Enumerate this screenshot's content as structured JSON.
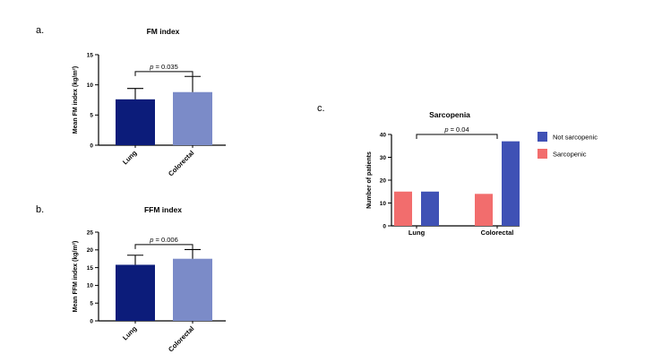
{
  "chart_data": [
    {
      "panel": "a.",
      "type": "bar",
      "title": "FM index",
      "ylabel": "Mean FM index (kg/m²)",
      "categories": [
        "Lung",
        "Colorectal"
      ],
      "values": [
        7.6,
        8.8
      ],
      "errors": [
        1.8,
        2.6
      ],
      "ylim": [
        0,
        15
      ],
      "yticks": [
        "0",
        "5",
        "10",
        "15"
      ],
      "colors": [
        "#0c1c7a",
        "#7b8bc8"
      ],
      "annotation": {
        "prefix": "p",
        "text": " = 0.035",
        "level": 12.2
      }
    },
    {
      "panel": "b.",
      "type": "bar",
      "title": "FFM index",
      "ylabel": "Mean FFM index (kg/m²)",
      "categories": [
        "Lung",
        "Colorectal"
      ],
      "values": [
        15.8,
        17.5
      ],
      "errors": [
        2.7,
        2.6
      ],
      "ylim": [
        0,
        25
      ],
      "yticks": [
        "0",
        "5",
        "10",
        "15",
        "20",
        "25"
      ],
      "colors": [
        "#0c1c7a",
        "#7b8bc8"
      ],
      "annotation": {
        "prefix": "p",
        "text": " = 0.006",
        "level": 21.5
      }
    },
    {
      "panel": "c.",
      "type": "bar",
      "title": "Sarcopenia",
      "ylabel": "Number of patients",
      "categories": [
        "Lung",
        "Colorectal"
      ],
      "series": [
        {
          "name": "Sarcopenic",
          "values": [
            15,
            14
          ],
          "color": "#f26d6d"
        },
        {
          "name": "Not sarcopenic",
          "values": [
            15,
            37
          ],
          "color": "#3f51b5"
        }
      ],
      "legend_order": [
        "Not sarcopenic",
        "Sarcopenic"
      ],
      "ylim": [
        0,
        40
      ],
      "yticks": [
        "0",
        "10",
        "20",
        "30",
        "40"
      ],
      "annotation": {
        "prefix": "p",
        "text": " = 0.04",
        "level": 40
      }
    }
  ]
}
